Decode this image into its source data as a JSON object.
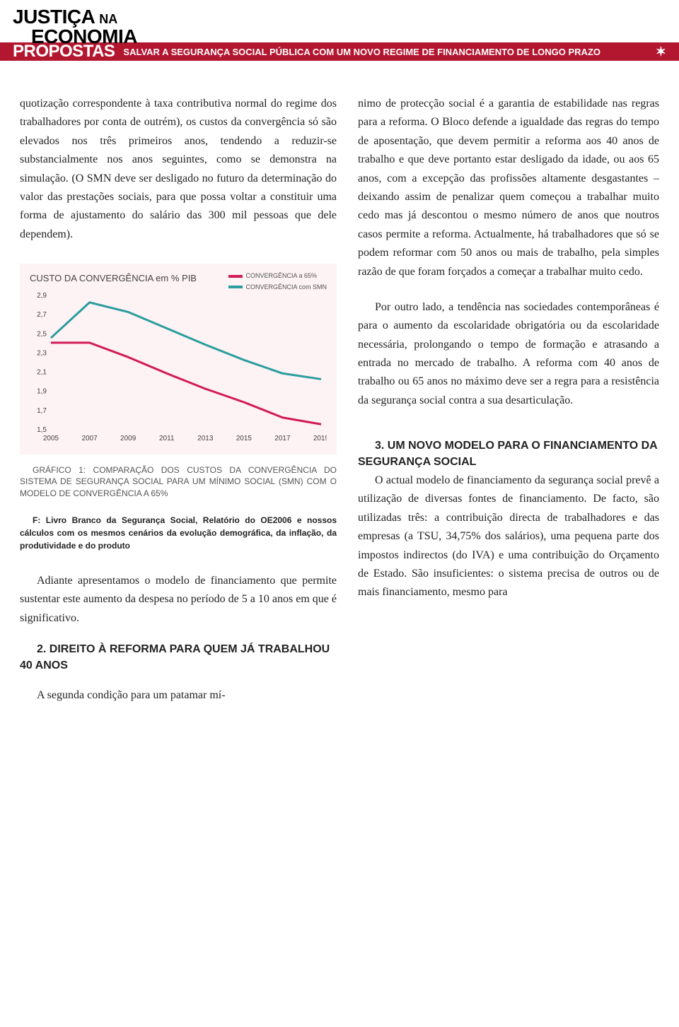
{
  "header": {
    "line1": "JUSTIÇA",
    "line1b": "NA",
    "line2": "ECONOMIA",
    "bar_label": "PROPOSTAS",
    "subtitle": "SALVAR A SEGURANÇA SOCIAL PÚBLICA COM UM NOVO REGIME DE FINANCIAMENTO DE LONGO PRAZO",
    "star": "✶",
    "bar_color": "#b31730"
  },
  "left": {
    "p1": "quotização correspondente à taxa contributiva normal do regime dos trabalhadores por conta de outrém), os custos da convergência só são elevados nos três primeiros anos, tendendo a reduzir-se substancialmente nos anos seguintes, como se demonstra na simulação. (O SMN deve ser desligado no futuro da determinação do valor das prestações sociais, para que possa voltar a constituir uma forma de ajustamento do salário das 300 mil pessoas que dele dependem).",
    "chart": {
      "title": "CUSTO DA CONVERGÊNCIA em % PIB",
      "legend": [
        {
          "label": "CONVERGÊNCIA a 65%",
          "color": "#d11a57"
        },
        {
          "label": "CONVERGÊNCIA com SMN",
          "color": "#2a9d9d"
        }
      ],
      "x_labels": [
        "2005",
        "2007",
        "2009",
        "2011",
        "2013",
        "2015",
        "2017",
        "2019"
      ],
      "y_labels": [
        "2,9",
        "2,7",
        "2,5",
        "2,3",
        "2,1",
        "1,9",
        "1,7",
        "1,5"
      ],
      "y_min": 1.5,
      "y_max": 2.9,
      "series": [
        {
          "color": "#2a9d9d",
          "width": 3,
          "values": [
            2.45,
            2.82,
            2.72,
            2.55,
            2.38,
            2.22,
            2.08,
            2.02
          ]
        },
        {
          "color": "#d11a57",
          "width": 3,
          "values": [
            2.4,
            2.4,
            2.25,
            2.08,
            1.92,
            1.78,
            1.62,
            1.55
          ]
        }
      ],
      "bg": "#fdf2f4",
      "axis_color": "#444",
      "tick_font": 10
    },
    "caption": "GRÁFICO 1: COMPARAÇÃO DOS CUSTOS DA CONVERGÊNCIA DO SISTEMA DE SEGURANÇA SOCIAL PARA UM MÍNIMO SOCIAL (SMN) COM O MODELO DE CONVERGÊNCIA A 65%",
    "source": "F: Livro Branco da Segurança Social, Relatório do OE2006 e nossos cálculos com os mesmos cenários da evolução demográfica, da inflação, da produtividade e do produto",
    "p2": "Adiante apresentamos o modelo de financiamento que permite sustentar este aumento da despesa no período de 5 a 10 anos em que é significativo.",
    "h2": "2. DIREITO À REFORMA PARA QUEM JÁ TRABALHOU 40 ANOS",
    "p3": "A segunda condição para um patamar mí-"
  },
  "right": {
    "p1": "nimo de protecção social é a garantia de estabilidade nas regras para a reforma. O Bloco defende a igualdade das regras do tempo de aposentação, que devem permitir a reforma aos 40 anos de trabalho e que deve portanto estar desligado da idade, ou aos 65 anos, com a excepção das profissões altamente desgastantes – deixando assim de penalizar quem começou a trabalhar muito cedo mas já descontou o mesmo número de anos que noutros casos permite a reforma. Actualmente, há trabalhadores que só se podem reformar com 50 anos ou mais de trabalho, pela simples razão de que foram forçados a começar a trabalhar muito cedo.",
    "p2": "Por outro lado, a tendência nas sociedades contemporâneas é para o aumento da escolaridade obrigatória ou da escolaridade necessária, prolongando o tempo de formação e atrasando a entrada no mercado de trabalho. A reforma com 40 anos de trabalho ou 65 anos no máximo deve ser a regra para a resistência da segurança social contra a sua desarticulação.",
    "h3": "3. UM NOVO MODELO PARA O FINANCIAMENTO DA SEGURANÇA SOCIAL",
    "p3": "O actual modelo de financiamento da segurança social prevê a utilização de diversas fontes de financiamento. De facto, são utilizadas três: a contribuição directa de trabalhadores e das empresas (a TSU, 34,75% dos salários), uma pequena parte dos impostos indirectos (do IVA) e uma contribuição do Orçamento de Estado. São insuficientes: o sistema precisa de outros ou de mais financiamento, mesmo para"
  }
}
